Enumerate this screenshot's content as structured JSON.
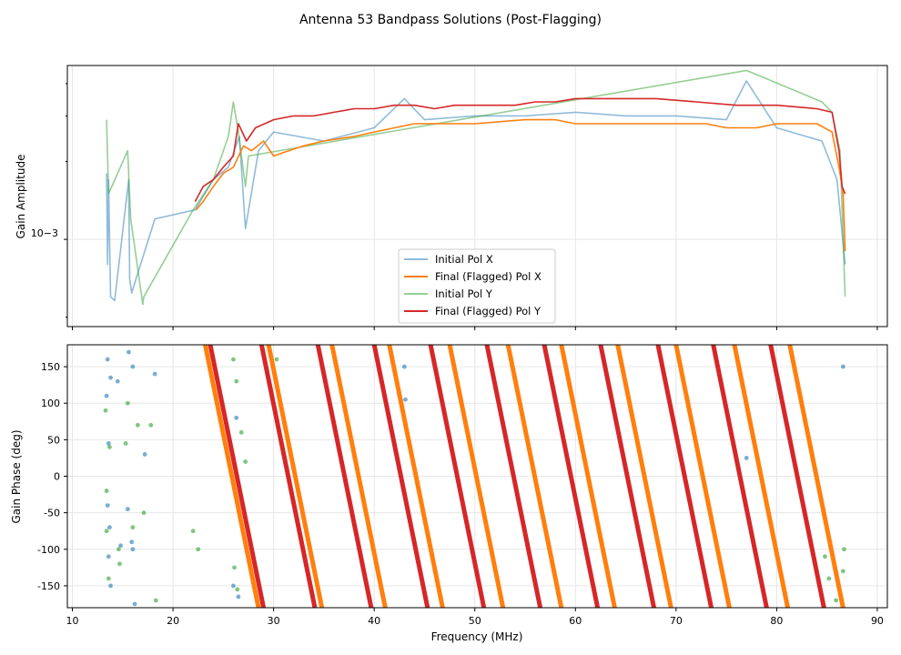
{
  "chart_data": [
    {
      "panel": "amplitude",
      "type": "line",
      "title": "Antenna 53 Bandpass Solutions (Post-Flagging)",
      "xlabel": "",
      "ylabel": "Gain Amplitude",
      "yscale": "log",
      "xlim": [
        9.5,
        91
      ],
      "ylim": [
        0.00046,
        0.0047
      ],
      "y_tick_label": "10−3",
      "grid": true,
      "legend": "lower-center",
      "series": [
        {
          "name": "Initial Pol X",
          "color": "#1f77b4",
          "alpha": 0.5,
          "points": [
            [
              13.4,
              0.0018
            ],
            [
              13.5,
              0.0008
            ],
            [
              13.6,
              0.0017
            ],
            [
              13.8,
              0.0006
            ],
            [
              14.2,
              0.00058
            ],
            [
              15.6,
              0.0017
            ],
            [
              15.7,
              0.0007
            ],
            [
              15.9,
              0.00062
            ],
            [
              16.1,
              0.00066
            ],
            [
              18.2,
              0.0012
            ],
            [
              22.2,
              0.0013
            ],
            [
              24.0,
              0.0017
            ],
            [
              25.5,
              0.0019
            ],
            [
              26.6,
              0.0025
            ],
            [
              27.2,
              0.0011
            ],
            [
              28.5,
              0.0022
            ],
            [
              30,
              0.0026
            ],
            [
              35,
              0.0024
            ],
            [
              40,
              0.0027
            ],
            [
              43.0,
              0.0035
            ],
            [
              45,
              0.0029
            ],
            [
              50,
              0.003
            ],
            [
              55,
              0.003
            ],
            [
              60,
              0.0031
            ],
            [
              65,
              0.003
            ],
            [
              70,
              0.003
            ],
            [
              75,
              0.0029
            ],
            [
              77.0,
              0.0041
            ],
            [
              80,
              0.0027
            ],
            [
              84.5,
              0.0024
            ],
            [
              86.0,
              0.0017
            ],
            [
              86.8,
              0.0008
            ]
          ]
        },
        {
          "name": "Final (Flagged) Pol X",
          "color": "#ff7f0e",
          "alpha": 1.0,
          "points": [
            [
              22.3,
              0.0013
            ],
            [
              23.0,
              0.0014
            ],
            [
              24.0,
              0.0016
            ],
            [
              25.0,
              0.0018
            ],
            [
              26.0,
              0.0019
            ],
            [
              27.0,
              0.0023
            ],
            [
              27.8,
              0.0022
            ],
            [
              29.0,
              0.0024
            ],
            [
              30.0,
              0.0021
            ],
            [
              31.5,
              0.0022
            ],
            [
              33,
              0.0023
            ],
            [
              35,
              0.0024
            ],
            [
              38,
              0.0025
            ],
            [
              40,
              0.0026
            ],
            [
              42,
              0.0027
            ],
            [
              44,
              0.0028
            ],
            [
              46,
              0.0028
            ],
            [
              50,
              0.0028
            ],
            [
              55,
              0.0029
            ],
            [
              58,
              0.0029
            ],
            [
              60,
              0.0028
            ],
            [
              65,
              0.0028
            ],
            [
              70,
              0.0028
            ],
            [
              73,
              0.0028
            ],
            [
              75,
              0.0027
            ],
            [
              78,
              0.0027
            ],
            [
              80,
              0.0028
            ],
            [
              82,
              0.0028
            ],
            [
              84,
              0.0028
            ],
            [
              85.5,
              0.0026
            ],
            [
              86.2,
              0.0019
            ],
            [
              86.6,
              0.0015
            ],
            [
              86.8,
              0.0009
            ]
          ]
        },
        {
          "name": "Initial Pol Y",
          "color": "#2ca02c",
          "alpha": 0.5,
          "points": [
            [
              13.4,
              0.0029
            ],
            [
              13.6,
              0.0015
            ],
            [
              15.5,
              0.0022
            ],
            [
              15.8,
              0.0012
            ],
            [
              17.0,
              0.00056
            ],
            [
              17.1,
              0.0006
            ],
            [
              22.0,
              0.0013
            ],
            [
              24.0,
              0.0017
            ],
            [
              25.5,
              0.0025
            ],
            [
              26.0,
              0.0034
            ],
            [
              26.5,
              0.0026
            ],
            [
              27.2,
              0.0016
            ],
            [
              27.5,
              0.0021
            ],
            [
              77.0,
              0.0045
            ],
            [
              84.5,
              0.0034
            ],
            [
              85.5,
              0.0031
            ],
            [
              86.3,
              0.0022
            ],
            [
              86.8,
              0.0006
            ]
          ]
        },
        {
          "name": "Final (Flagged) Pol Y",
          "color": "#d62728",
          "alpha": 1.0,
          "points": [
            [
              22.2,
              0.0014
            ],
            [
              23.0,
              0.0016
            ],
            [
              24.0,
              0.0017
            ],
            [
              25.0,
              0.0019
            ],
            [
              26.0,
              0.0021
            ],
            [
              26.5,
              0.0028
            ],
            [
              27.3,
              0.0024
            ],
            [
              28.2,
              0.0027
            ],
            [
              30,
              0.0029
            ],
            [
              32,
              0.003
            ],
            [
              34,
              0.003
            ],
            [
              36,
              0.0031
            ],
            [
              38,
              0.0032
            ],
            [
              40,
              0.0032
            ],
            [
              42,
              0.0033
            ],
            [
              44,
              0.0033
            ],
            [
              46,
              0.0032
            ],
            [
              48,
              0.0033
            ],
            [
              50,
              0.0033
            ],
            [
              54,
              0.0033
            ],
            [
              56,
              0.0034
            ],
            [
              58,
              0.0034
            ],
            [
              60,
              0.0035
            ],
            [
              64,
              0.0035
            ],
            [
              68,
              0.0035
            ],
            [
              72,
              0.0034
            ],
            [
              76,
              0.0033
            ],
            [
              80,
              0.0033
            ],
            [
              84,
              0.0032
            ],
            [
              85.5,
              0.0031
            ],
            [
              86.2,
              0.0022
            ],
            [
              86.5,
              0.0016
            ],
            [
              86.8,
              0.0015
            ]
          ]
        }
      ],
      "legend_entries": [
        "Initial Pol X",
        "Final (Flagged) Pol X",
        "Initial Pol Y",
        "Final (Flagged) Pol Y"
      ]
    },
    {
      "panel": "phase",
      "type": "scatter",
      "title": "",
      "xlabel": "Frequency (MHz)",
      "ylabel": "Gain Phase (deg)",
      "xlim": [
        9.5,
        91
      ],
      "ylim": [
        -180,
        180
      ],
      "x_ticks": [
        10,
        20,
        30,
        40,
        50,
        60,
        70,
        80,
        90
      ],
      "y_ticks": [
        -150,
        -100,
        -50,
        0,
        50,
        100,
        150
      ],
      "grid": true,
      "series": [
        {
          "name": "Final (Flagged) Pol X",
          "color": "#ff7f0e",
          "wrap_lines_x_at_top": [
            23.2,
            29.5,
            35.8,
            41.5,
            47.5,
            53.3,
            58.6,
            64.2,
            70.0,
            75.8,
            81.3
          ]
        },
        {
          "name": "Final (Flagged) Pol Y",
          "color": "#d62728",
          "wrap_lines_x_at_top": [
            23.7,
            28.8,
            34.4,
            40.0,
            45.6,
            51.2,
            56.9,
            62.5,
            68.2,
            73.7,
            79.4
          ]
        },
        {
          "name": "Initial Pol X",
          "color": "#1f77b4",
          "alpha": 0.6,
          "points": [
            [
              13.5,
              160
            ],
            [
              13.8,
              135
            ],
            [
              13.4,
              110
            ],
            [
              13.6,
              45
            ],
            [
              13.5,
              -40
            ],
            [
              13.7,
              -70
            ],
            [
              13.6,
              -110
            ],
            [
              13.8,
              -150
            ],
            [
              14.5,
              130
            ],
            [
              14.8,
              -95
            ],
            [
              15.6,
              170
            ],
            [
              15.5,
              -45
            ],
            [
              15.9,
              -90
            ],
            [
              16.0,
              150
            ],
            [
              16.0,
              -100
            ],
            [
              16.2,
              -175
            ],
            [
              17.2,
              30
            ],
            [
              18.2,
              140
            ],
            [
              26.3,
              80
            ],
            [
              26.0,
              -150
            ],
            [
              26.5,
              -165
            ],
            [
              43.0,
              150
            ],
            [
              43.1,
              105
            ],
            [
              77.0,
              25
            ],
            [
              86.6,
              150
            ]
          ]
        },
        {
          "name": "Initial Pol Y",
          "color": "#2ca02c",
          "alpha": 0.6,
          "points": [
            [
              13.3,
              90
            ],
            [
              13.7,
              40
            ],
            [
              13.4,
              -20
            ],
            [
              13.4,
              -75
            ],
            [
              13.6,
              -140
            ],
            [
              14.6,
              -100
            ],
            [
              14.7,
              -120
            ],
            [
              15.3,
              45
            ],
            [
              15.5,
              100
            ],
            [
              16.0,
              -70
            ],
            [
              16.5,
              70
            ],
            [
              17.1,
              -50
            ],
            [
              17.8,
              70
            ],
            [
              18.3,
              -170
            ],
            [
              22.0,
              -75
            ],
            [
              22.5,
              -100
            ],
            [
              26.0,
              160
            ],
            [
              26.3,
              130
            ],
            [
              26.8,
              60
            ],
            [
              27.2,
              20
            ],
            [
              26.1,
              -125
            ],
            [
              26.4,
              -155
            ],
            [
              30.3,
              160
            ],
            [
              84.8,
              -110
            ],
            [
              85.2,
              -140
            ],
            [
              85.9,
              -170
            ],
            [
              86.7,
              -100
            ],
            [
              86.6,
              -130
            ]
          ]
        }
      ]
    }
  ]
}
